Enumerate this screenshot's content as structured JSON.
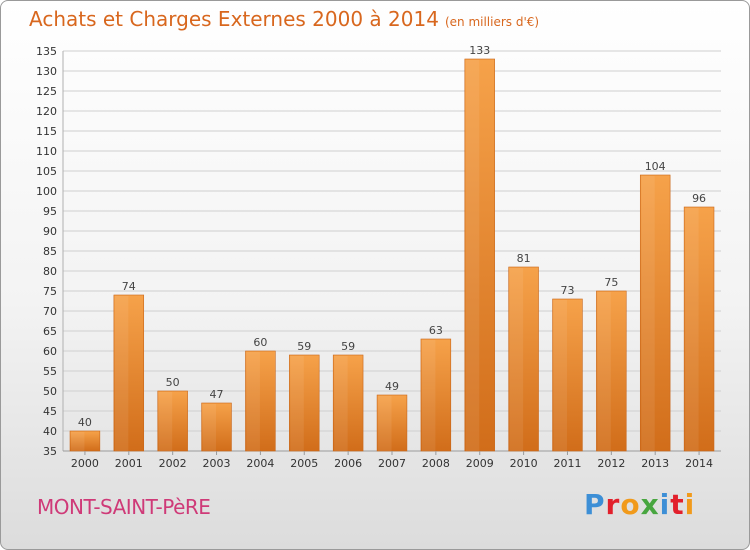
{
  "header": {
    "title": "Achats et Charges Externes 2000 à 2014",
    "unit": "(en milliers d'€)"
  },
  "footer": {
    "commune": "MONT-SAINT-PèRE",
    "logo_letters": [
      "P",
      "r",
      "o",
      "x",
      "i",
      "t",
      "i"
    ],
    "logo_colors": [
      "#3d8fd6",
      "#e2202c",
      "#f19a1b",
      "#48a640",
      "#3d8fd6",
      "#e2202c",
      "#f19a1b"
    ]
  },
  "colors": {
    "bar_light": "#f7a64f",
    "bar_dark": "#d9751f",
    "grid": "#cfcfcf"
  },
  "chart_data": {
    "type": "bar",
    "title": "Achats et Charges Externes 2000 à 2014",
    "subtitle": "(en milliers d'€)",
    "categories": [
      "2000",
      "2001",
      "2002",
      "2003",
      "2004",
      "2005",
      "2006",
      "2007",
      "2008",
      "2009",
      "2010",
      "2011",
      "2012",
      "2013",
      "2014"
    ],
    "values": [
      40,
      74,
      50,
      47,
      60,
      59,
      59,
      49,
      63,
      133,
      81,
      73,
      75,
      104,
      96
    ],
    "ylim": [
      35,
      135
    ],
    "yticks": [
      35,
      40,
      45,
      50,
      55,
      60,
      65,
      70,
      75,
      80,
      85,
      90,
      95,
      100,
      105,
      110,
      115,
      120,
      125,
      130,
      135
    ],
    "grid": true,
    "xlabel": "",
    "ylabel": ""
  }
}
